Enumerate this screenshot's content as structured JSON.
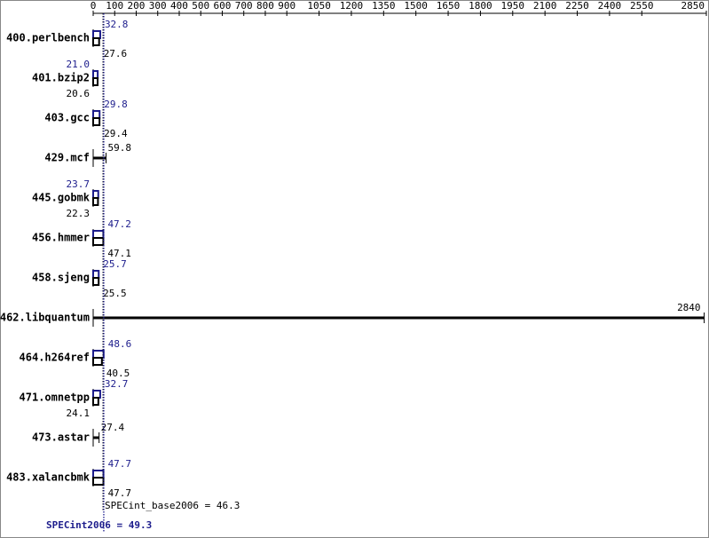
{
  "chart_data": {
    "type": "bar",
    "categories": [
      "400.perlbench",
      "401.bzip2",
      "403.gcc",
      "429.mcf",
      "445.gobmk",
      "456.hmmer",
      "458.sjeng",
      "462.libquantum",
      "464.h264ref",
      "471.omnetpp",
      "473.astar",
      "483.xalancbmk"
    ],
    "series": [
      {
        "color": "#000000",
        "values": [
          27.6,
          20.6,
          29.4,
          59.8,
          22.3,
          47.1,
          25.5,
          2840,
          40.5,
          24.1,
          27.4,
          47.7
        ],
        "value_labels": [
          "27.6",
          "20.6",
          "29.4",
          "59.8",
          "22.3",
          "47.1",
          "25.5",
          "2840",
          "40.5",
          "24.1",
          "27.4",
          "47.7"
        ]
      },
      {
        "color": "#1c1c8c",
        "values": [
          32.8,
          21.0,
          29.8,
          null,
          23.7,
          47.2,
          25.7,
          null,
          48.6,
          32.7,
          null,
          47.7
        ],
        "value_labels": [
          "32.8",
          "21.0",
          "29.8",
          null,
          "23.7",
          "47.2",
          "25.7",
          null,
          "48.6",
          "32.7",
          null,
          "47.7"
        ]
      }
    ],
    "xlim": [
      0,
      2850
    ],
    "xticks": [
      0,
      100,
      200,
      300,
      400,
      500,
      600,
      700,
      800,
      900,
      1050,
      1200,
      1350,
      1500,
      1650,
      1800,
      1950,
      2100,
      2250,
      2400,
      2550,
      2850
    ],
    "summaries": [
      {
        "label": "SPECint_base2006 = 46.3",
        "value": 46.3,
        "color": "#000000"
      },
      {
        "label": "SPECint2006 = 49.3",
        "value": 49.3,
        "color": "#1c1c8c"
      }
    ]
  }
}
